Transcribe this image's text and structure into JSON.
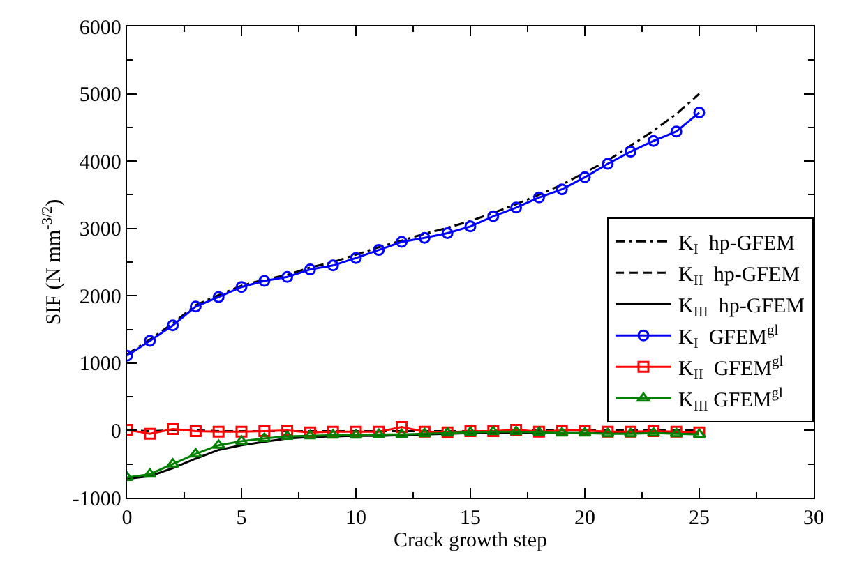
{
  "chart_data": {
    "type": "line",
    "xlabel": "Crack growth step",
    "ylabel": "SIF (N mm$^{-3/2}$)",
    "x": [
      0,
      1,
      2,
      3,
      4,
      5,
      6,
      7,
      8,
      9,
      10,
      11,
      12,
      13,
      14,
      15,
      16,
      17,
      18,
      19,
      20,
      21,
      22,
      23,
      24,
      25
    ],
    "xlim": [
      0,
      30
    ],
    "xticks": [
      0,
      5,
      10,
      15,
      20,
      25,
      30
    ],
    "ylim": [
      -1000,
      6000
    ],
    "yticks": [
      -1000,
      0,
      1000,
      2000,
      3000,
      4000,
      5000,
      6000
    ],
    "legend": "right",
    "series": [
      {
        "name": "K$_{I}$  hp-GFEM",
        "color": "#000000",
        "line_style": "dashdot",
        "marker": "none",
        "values": [
          1130,
          1350,
          1590,
          1860,
          2010,
          2150,
          2240,
          2310,
          2420,
          2500,
          2610,
          2720,
          2820,
          2920,
          3010,
          3110,
          3230,
          3360,
          3500,
          3650,
          3830,
          4010,
          4230,
          4450,
          4700,
          5000
        ]
      },
      {
        "name": "K$_{II}$  hp-GFEM",
        "color": "#000000",
        "line_style": "dashed",
        "marker": "none",
        "values": [
          0,
          -10,
          0,
          0,
          -10,
          -10,
          -10,
          -10,
          -10,
          -10,
          -10,
          -10,
          -10,
          -10,
          -10,
          -10,
          -10,
          0,
          0,
          0,
          0,
          0,
          0,
          0,
          0,
          0
        ]
      },
      {
        "name": "K$_{III}$  hp-GFEM",
        "color": "#000000",
        "line_style": "solid",
        "marker": "none",
        "values": [
          -720,
          -680,
          -560,
          -420,
          -290,
          -220,
          -170,
          -120,
          -100,
          -90,
          -80,
          -80,
          -70,
          -60,
          -50,
          -40,
          -40,
          -40,
          -40,
          -40,
          -40,
          -40,
          -40,
          -40,
          -40,
          -40
        ]
      },
      {
        "name": "K$_{I}$  GFEM$^{gl}$",
        "color": "#0000ff",
        "line_style": "solid",
        "marker": "circle",
        "values": [
          1110,
          1330,
          1560,
          1840,
          1980,
          2130,
          2220,
          2280,
          2390,
          2450,
          2560,
          2680,
          2800,
          2860,
          2930,
          3030,
          3180,
          3310,
          3460,
          3580,
          3760,
          3960,
          4140,
          4300,
          4440,
          4720
        ]
      },
      {
        "name": "K$_{II}$  GFEM$^{gl}$",
        "color": "#ff0000",
        "line_style": "solid",
        "marker": "square",
        "values": [
          10,
          -50,
          20,
          -10,
          -20,
          -20,
          -10,
          0,
          -30,
          -20,
          -20,
          -20,
          50,
          -20,
          -30,
          -10,
          -10,
          10,
          -20,
          0,
          0,
          -20,
          -20,
          -10,
          -20,
          -30
        ]
      },
      {
        "name": "K$_{III}$ GFEM$^{gl}$",
        "color": "#008000",
        "line_style": "solid",
        "marker": "triangle",
        "values": [
          -700,
          -650,
          -500,
          -350,
          -220,
          -160,
          -120,
          -90,
          -80,
          -70,
          -70,
          -60,
          -60,
          -50,
          -40,
          -30,
          -20,
          -20,
          -30,
          -40,
          -40,
          -50,
          -50,
          -40,
          -50,
          -60
        ]
      }
    ]
  }
}
